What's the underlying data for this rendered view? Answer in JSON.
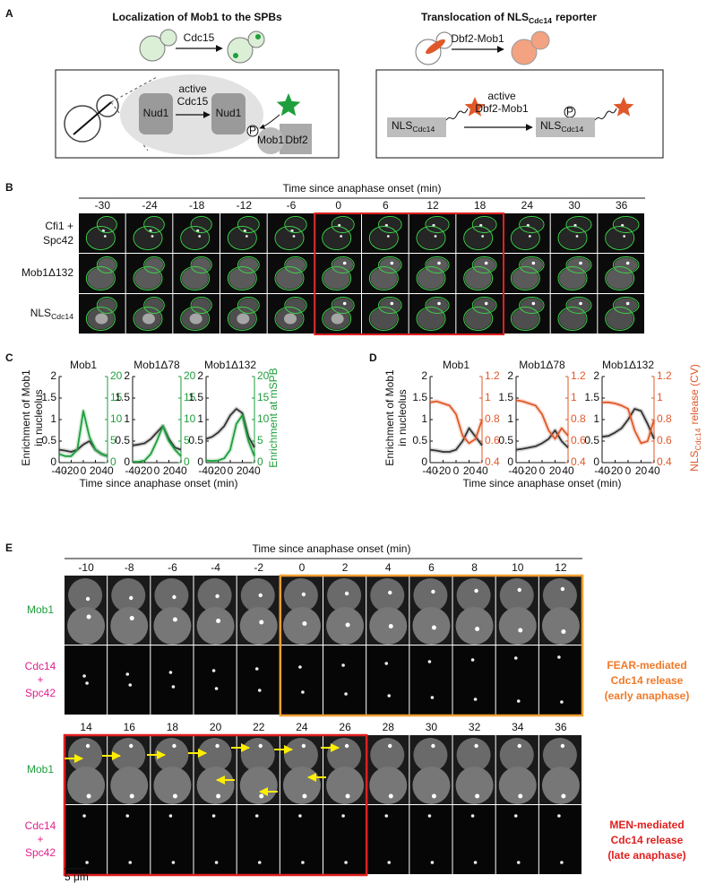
{
  "panel_a": {
    "label": "A",
    "left": {
      "title": "Localization of Mob1 to the SPBs",
      "arrow": "Cdc15",
      "active": "active",
      "kinase": "Cdc15",
      "nud1": [
        "Nud1",
        "Nud1"
      ],
      "phospho": "P",
      "mob1": "Mob1",
      "dbf2": "Dbf2"
    },
    "right": {
      "title": [
        "Translocation of NLS",
        "Cdc14",
        "reporter"
      ],
      "arrow": "Dbf2-Mob1",
      "active": "active",
      "kinase": "Dbf2-Mob1",
      "reporter": [
        [
          "NLS",
          "Cdc14"
        ],
        [
          "NLS",
          "Cdc14"
        ]
      ],
      "phospho": "P"
    }
  },
  "panel_b": {
    "label": "B",
    "title": "Time since anaphase onset (min)",
    "times": [
      -30,
      -24,
      -18,
      -12,
      -6,
      0,
      6,
      12,
      18,
      24,
      30,
      36
    ],
    "row_labels": {
      "cfi1": [
        "Cfi1 +",
        "Spc42"
      ],
      "mob1": "Mob1Δ132",
      "nls": [
        "NLS",
        "Cdc14"
      ]
    }
  },
  "panel_c": {
    "label": "C",
    "ylabel": [
      "Enrichment of Mob1",
      "in nucleolus"
    ],
    "y2label": "Enrichment at mSPB",
    "xlabel": "Time since anaphase onset (min)"
  },
  "panel_d": {
    "label": "D",
    "ylabel": [
      "Enrichment of Mob1",
      "in nucleolus"
    ],
    "y2label": [
      "NLS",
      "Cdc14",
      "release (CV)"
    ],
    "xlabel": "Time since anaphase onset (min)"
  },
  "chart_data": [
    {
      "type": "line",
      "title": "Mob1",
      "x": [
        -40,
        -30,
        -20,
        -10,
        0,
        10,
        20,
        30,
        40
      ],
      "xlim": [
        -40,
        40
      ],
      "xticks": [
        -40,
        -20,
        0,
        20,
        40
      ],
      "ylim": [
        0,
        2
      ],
      "yticks": [
        0,
        0.5,
        1,
        1.5,
        2
      ],
      "y2lim": [
        0,
        20
      ],
      "y2ticks": [
        0,
        5,
        10,
        15,
        20
      ],
      "series": [
        {
          "color": "#333333",
          "values": [
            0.3,
            0.28,
            0.25,
            0.3,
            0.42,
            0.5,
            0.3,
            0.2,
            0.15
          ]
        },
        {
          "color": "#1e9e3c",
          "axis": "y2",
          "values": [
            2,
            1.5,
            1.5,
            3,
            12,
            6,
            3,
            2,
            1.5
          ]
        }
      ]
    },
    {
      "type": "line",
      "title": "Mob1Δ78",
      "x": [
        -40,
        -30,
        -20,
        -10,
        0,
        10,
        20,
        30,
        40
      ],
      "xlim": [
        -40,
        40
      ],
      "xticks": [
        -40,
        -20,
        0,
        20,
        40
      ],
      "ylim": [
        0,
        2
      ],
      "yticks": [
        0,
        0.5,
        1,
        1.5,
        2
      ],
      "y2lim": [
        0,
        20
      ],
      "y2ticks": [
        0,
        5,
        10,
        15,
        20
      ],
      "series": [
        {
          "color": "#333333",
          "values": [
            0.4,
            0.42,
            0.45,
            0.55,
            0.7,
            0.85,
            0.55,
            0.35,
            0.3
          ]
        },
        {
          "color": "#1e9e3c",
          "axis": "y2",
          "values": [
            0.2,
            0.2,
            0.5,
            2,
            5,
            8.5,
            5,
            3,
            1.5
          ]
        }
      ]
    },
    {
      "type": "line",
      "title": "Mob1Δ132",
      "x": [
        -40,
        -30,
        -20,
        -10,
        0,
        10,
        20,
        30,
        40
      ],
      "xlim": [
        -40,
        40
      ],
      "xticks": [
        -40,
        -20,
        0,
        20,
        40
      ],
      "ylim": [
        0,
        2
      ],
      "yticks": [
        0,
        0.5,
        1,
        1.5,
        2
      ],
      "y2lim": [
        0,
        20
      ],
      "y2ticks": [
        0,
        5,
        10,
        15,
        20
      ],
      "series": [
        {
          "color": "#333333",
          "values": [
            0.55,
            0.6,
            0.7,
            0.85,
            1.1,
            1.25,
            1.15,
            0.6,
            0.35
          ]
        },
        {
          "color": "#1e9e3c",
          "axis": "y2",
          "values": [
            0.5,
            0.4,
            0.5,
            1,
            3,
            9,
            11,
            5,
            1.5
          ]
        }
      ]
    },
    {
      "type": "line",
      "title": "Mob1",
      "x": [
        -40,
        -30,
        -20,
        -10,
        0,
        10,
        20,
        30,
        40
      ],
      "xlim": [
        -40,
        40
      ],
      "xticks": [
        -40,
        -20,
        0,
        20,
        40
      ],
      "ylim": [
        0,
        2
      ],
      "yticks": [
        0,
        0.5,
        1,
        1.5,
        2
      ],
      "y2lim": [
        0.4,
        1.2
      ],
      "y2ticks": [
        0.4,
        0.6,
        0.8,
        1,
        1.2
      ],
      "series": [
        {
          "color": "#333333",
          "values": [
            0.3,
            0.28,
            0.25,
            0.25,
            0.3,
            0.5,
            0.8,
            0.6,
            0.4
          ]
        },
        {
          "color": "#e0582a",
          "axis": "y2",
          "values": [
            0.96,
            0.97,
            0.95,
            0.93,
            0.85,
            0.65,
            0.58,
            0.62,
            0.8
          ]
        }
      ]
    },
    {
      "type": "line",
      "title": "Mob1Δ78",
      "x": [
        -40,
        -30,
        -20,
        -10,
        0,
        10,
        20,
        30,
        40
      ],
      "xlim": [
        -40,
        40
      ],
      "xticks": [
        -40,
        -20,
        0,
        20,
        40
      ],
      "ylim": [
        0,
        2
      ],
      "yticks": [
        0,
        0.5,
        1,
        1.5,
        2
      ],
      "y2lim": [
        0.4,
        1.2
      ],
      "y2ticks": [
        0.4,
        0.6,
        0.8,
        1,
        1.2
      ],
      "series": [
        {
          "color": "#333333",
          "values": [
            0.3,
            0.32,
            0.35,
            0.38,
            0.45,
            0.55,
            0.75,
            0.5,
            0.35
          ]
        },
        {
          "color": "#e0582a",
          "axis": "y2",
          "values": [
            0.98,
            0.97,
            0.95,
            0.93,
            0.85,
            0.7,
            0.62,
            0.72,
            0.65
          ]
        }
      ]
    },
    {
      "type": "line",
      "title": "Mob1Δ132",
      "x": [
        -40,
        -30,
        -20,
        -10,
        0,
        10,
        20,
        30,
        40
      ],
      "xlim": [
        -40,
        40
      ],
      "xticks": [
        -40,
        -20,
        0,
        20,
        40
      ],
      "ylim": [
        0,
        2
      ],
      "yticks": [
        0,
        0.5,
        1,
        1.5,
        2
      ],
      "y2lim": [
        0.4,
        1.2
      ],
      "y2ticks": [
        0.4,
        0.6,
        0.8,
        1,
        1.2
      ],
      "series": [
        {
          "color": "#333333",
          "values": [
            0.6,
            0.62,
            0.7,
            0.8,
            1.0,
            1.25,
            1.2,
            0.9,
            0.55
          ]
        },
        {
          "color": "#e0582a",
          "axis": "y2",
          "values": [
            0.96,
            0.96,
            0.95,
            0.93,
            0.9,
            0.7,
            0.58,
            0.6,
            0.8
          ]
        }
      ]
    }
  ],
  "panel_e": {
    "label": "E",
    "title": "Time since anaphase onset (min)",
    "times_top": [
      -10,
      -8,
      -6,
      -4,
      -2,
      0,
      2,
      4,
      6,
      8,
      10,
      12
    ],
    "times_bottom": [
      14,
      16,
      18,
      20,
      22,
      24,
      26,
      28,
      30,
      32,
      34,
      36
    ],
    "row_labels": {
      "mob1": "Mob1",
      "cdc14": [
        "Cdc14",
        "+",
        "Spc42"
      ]
    },
    "fear": [
      "FEAR-mediated",
      "Cdc14 release",
      "(early anaphase)"
    ],
    "men": [
      "MEN-mediated",
      "Cdc14 release",
      "(late anaphase)"
    ],
    "scale_bar": "5 μm"
  }
}
